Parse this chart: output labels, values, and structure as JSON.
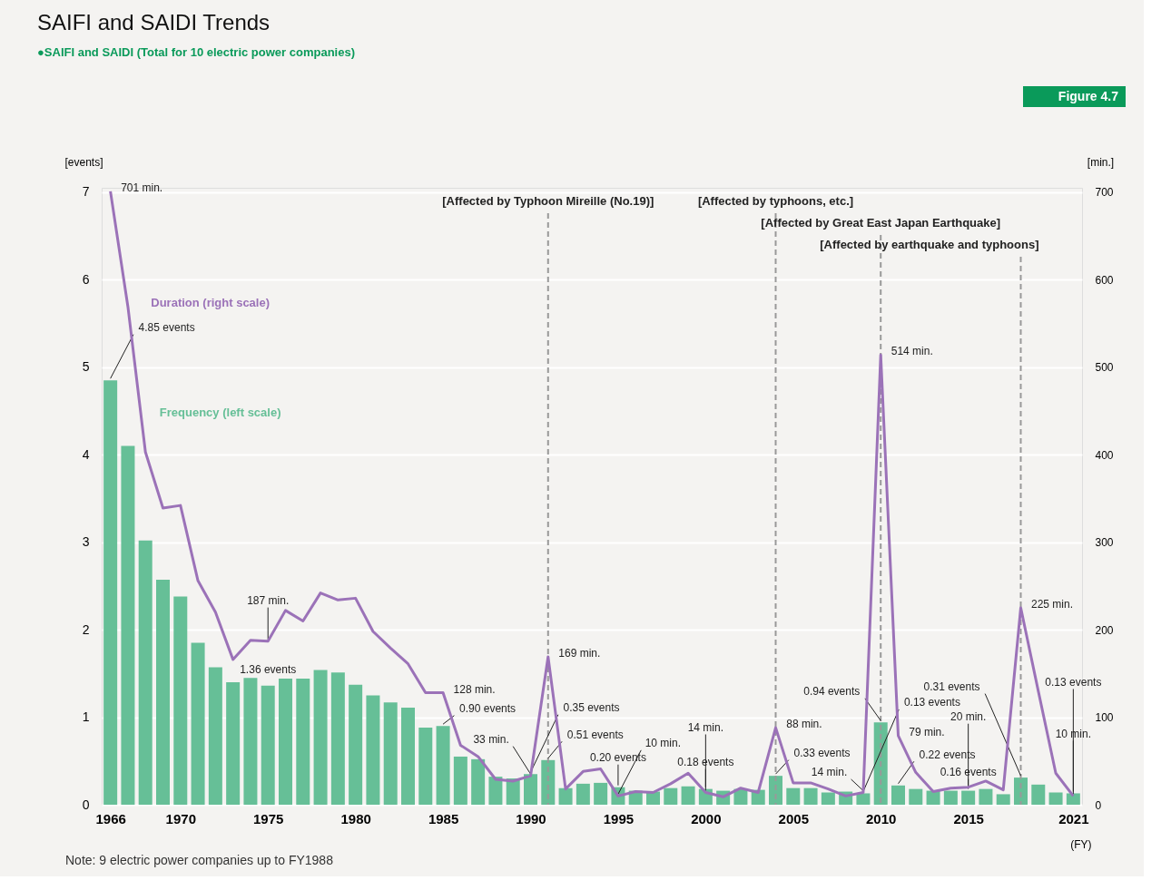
{
  "chart_data": {
    "type": "bar",
    "title": "SAIFI and SAIDI Trends",
    "subtitle": "●SAIFI and SAIDI (Total for 10 electric power companies)",
    "xlabel": "(FY)",
    "ylabel": "[events]",
    "y2label": "[min.]",
    "annotations": [
      "Figure 4.7",
      "Note: 9 electric power companies up to FY1988"
    ],
    "x": [
      1966,
      1967,
      1968,
      1969,
      1970,
      1971,
      1972,
      1973,
      1974,
      1975,
      1976,
      1977,
      1978,
      1979,
      1980,
      1981,
      1982,
      1983,
      1984,
      1985,
      1986,
      1987,
      1988,
      1989,
      1990,
      1991,
      1992,
      1993,
      1994,
      1995,
      1996,
      1997,
      1998,
      1999,
      2000,
      2001,
      2002,
      2003,
      2004,
      2005,
      2006,
      2007,
      2008,
      2009,
      2010,
      2011,
      2012,
      2013,
      2014,
      2015,
      2016,
      2017,
      2018,
      2019,
      2020,
      2021
    ],
    "xlim": [
      1965.5,
      2021.5
    ],
    "xticks": [
      1966,
      1970,
      1975,
      1980,
      1985,
      1990,
      1995,
      2000,
      2005,
      2010,
      2015,
      2021
    ],
    "ylim": [
      0,
      7.05
    ],
    "yticks": [
      0,
      1,
      2,
      3,
      4,
      5,
      6,
      7
    ],
    "y2lim": [
      0,
      705
    ],
    "y2ticks": [
      0,
      100,
      200,
      300,
      400,
      500,
      600,
      700
    ],
    "grid": "y",
    "series": [
      {
        "name": "Frequency (left scale)",
        "color": "#66bf97",
        "values": [
          4.85,
          4.1,
          3.02,
          2.57,
          2.38,
          1.85,
          1.57,
          1.4,
          1.45,
          1.36,
          1.44,
          1.44,
          1.54,
          1.51,
          1.37,
          1.25,
          1.17,
          1.11,
          0.88,
          0.9,
          0.55,
          0.52,
          0.32,
          0.3,
          0.35,
          0.51,
          0.19,
          0.24,
          0.25,
          0.2,
          0.16,
          0.15,
          0.19,
          0.21,
          0.18,
          0.16,
          0.18,
          0.17,
          0.33,
          0.19,
          0.19,
          0.14,
          0.15,
          0.13,
          0.94,
          0.22,
          0.18,
          0.16,
          0.16,
          0.16,
          0.18,
          0.12,
          0.31,
          0.23,
          0.14,
          0.13
        ],
        "value_labels": [
          "4.85 events",
          null,
          null,
          null,
          null,
          null,
          null,
          null,
          null,
          "1.36 events",
          null,
          null,
          null,
          null,
          null,
          null,
          null,
          null,
          null,
          "0.90 events",
          null,
          null,
          null,
          null,
          "0.35 events",
          "0.51 events",
          null,
          null,
          null,
          "0.20 events",
          null,
          null,
          null,
          null,
          "0.18 events",
          null,
          null,
          null,
          "0.33 events",
          null,
          null,
          null,
          null,
          "0.13 events",
          "0.94 events",
          "0.22 events",
          null,
          null,
          null,
          "0.16 events",
          null,
          null,
          "0.31 events",
          null,
          null,
          "0.13 events"
        ]
      },
      {
        "name": "Duration (right scale)",
        "type": "line",
        "axis": "y2",
        "color": "#9b72b8",
        "line_style": "solid",
        "values": [
          701,
          569,
          403,
          339,
          342,
          256,
          220,
          166,
          188,
          187,
          222,
          210,
          242,
          234,
          236,
          198,
          179,
          161,
          128,
          128,
          68,
          55,
          29,
          27,
          33,
          169,
          18,
          38,
          41,
          10,
          15,
          14,
          24,
          36,
          14,
          9,
          19,
          14,
          88,
          25,
          25,
          18,
          10,
          14,
          514,
          79,
          37,
          15,
          19,
          20,
          27,
          17,
          225,
          130,
          36,
          10
        ],
        "value_labels": [
          "701 min.",
          null,
          null,
          null,
          null,
          null,
          null,
          null,
          null,
          "187 min.",
          null,
          null,
          null,
          null,
          null,
          null,
          null,
          null,
          null,
          "128 min.",
          null,
          null,
          null,
          null,
          "33 min.",
          "169 min.",
          null,
          null,
          null,
          "10 min.",
          null,
          null,
          null,
          null,
          "14 min.",
          null,
          null,
          null,
          "88 min.",
          null,
          null,
          null,
          null,
          "14 min.",
          "514 min.",
          "79 min.",
          null,
          null,
          null,
          "20 min.",
          null,
          null,
          "225 min.",
          null,
          null,
          "10 min."
        ]
      }
    ],
    "ref_lines": [
      {
        "axis": "x",
        "value": 1991,
        "label": "[Affected by Typhoon Mireille (No.19)]",
        "color": "#999999",
        "line_style": "dashed"
      },
      {
        "axis": "x",
        "value": 2004,
        "label": "[Affected by typhoons, etc.]",
        "color": "#999999",
        "line_style": "dashed"
      },
      {
        "axis": "x",
        "value": 2010,
        "label": "[Affected by Great East Japan Earthquake]",
        "color": "#999999",
        "line_style": "dashed"
      },
      {
        "axis": "x",
        "value": 2018,
        "label": "[Affected by earthquake and typhoons]",
        "color": "#999999",
        "line_style": "dashed"
      }
    ]
  }
}
